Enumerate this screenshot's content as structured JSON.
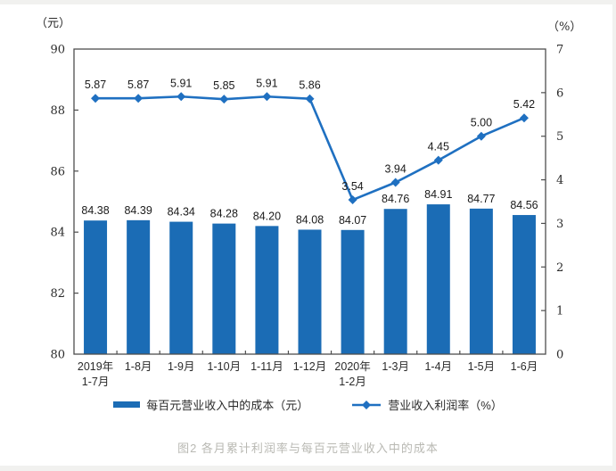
{
  "chart_data": {
    "type": "bar+line combo",
    "categories": [
      "2019年\n1-7月",
      "1-8月",
      "1-9月",
      "1-10月",
      "1-11月",
      "1-12月",
      "2020年\n1-2月",
      "1-3月",
      "1-4月",
      "1-5月",
      "1-6月"
    ],
    "series": [
      {
        "name": "每百元营业收入中的成本（元）",
        "type": "bar",
        "axis": "left",
        "color": "#1b6cb5",
        "values": [
          84.38,
          84.39,
          84.34,
          84.28,
          84.2,
          84.08,
          84.07,
          84.76,
          84.91,
          84.77,
          84.56
        ]
      },
      {
        "name": "营业收入利润率（%）",
        "type": "line",
        "axis": "right",
        "color": "#1f70c1",
        "marker": "diamond",
        "values": [
          5.87,
          5.87,
          5.91,
          5.85,
          5.91,
          5.86,
          3.54,
          3.94,
          4.45,
          5.0,
          5.42
        ]
      }
    ],
    "left_axis": {
      "label": "（元）",
      "min": 80,
      "max": 90,
      "step": 2,
      "ticks": [
        80,
        82,
        84,
        86,
        88,
        90
      ]
    },
    "right_axis": {
      "label": "（%）",
      "min": 0,
      "max": 7,
      "step": 1,
      "ticks": [
        0,
        1,
        2,
        3,
        4,
        5,
        6,
        7
      ]
    },
    "grid": false,
    "legend_position": "bottom",
    "value_labels_decimals": 2,
    "caption": "图2  各月累计利润率与每百元营业收入中的成本"
  }
}
